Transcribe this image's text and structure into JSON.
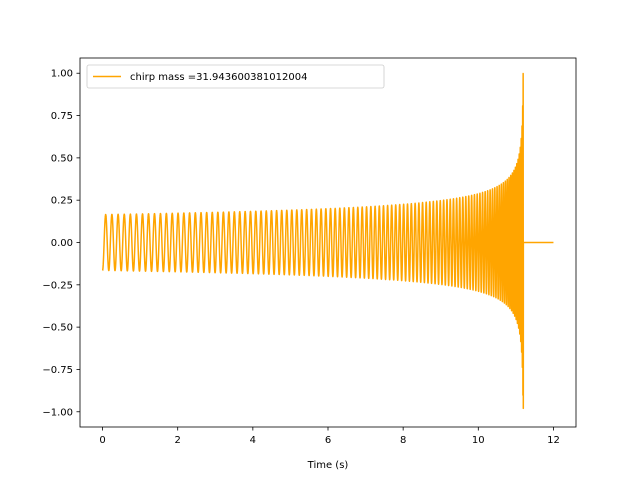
{
  "chart_data": {
    "type": "line",
    "title": "",
    "xlabel": "Time (s)",
    "ylabel": "",
    "xlim": [
      -0.6,
      12.6
    ],
    "ylim": [
      -1.09,
      1.09
    ],
    "xticks": [
      0,
      2,
      4,
      6,
      8,
      10,
      12
    ],
    "xtick_labels": [
      "0",
      "2",
      "4",
      "6",
      "8",
      "10",
      "12"
    ],
    "yticks": [
      -1.0,
      -0.75,
      -0.5,
      -0.25,
      0.0,
      0.25,
      0.5,
      0.75,
      1.0
    ],
    "ytick_labels": [
      "−1.00",
      "−0.75",
      "−0.50",
      "−0.25",
      "0.00",
      "0.25",
      "0.50",
      "0.75",
      "1.00"
    ],
    "grid": false,
    "legend_position": "top-left",
    "series": [
      {
        "name": "chirp mass =31.943600381012004",
        "color": "#ffa500",
        "waveform": "chirp",
        "t_start": 0,
        "t_merger": 11.2,
        "t_end": 12,
        "initial_amplitude": 0.165,
        "peak_amplitude": 1.0,
        "min_amplitude": -0.98,
        "initial_frequency_hz": 6.0,
        "post_merger_value": 0.0
      }
    ]
  }
}
